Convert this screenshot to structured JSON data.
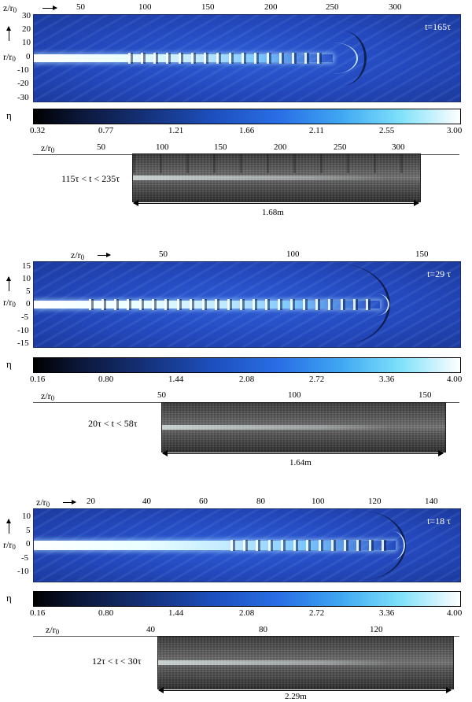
{
  "panels": [
    {
      "z_label": "z/r",
      "z_sub": "0",
      "r_label": "r/r",
      "r_sub": "0",
      "z_ticks": [
        "50",
        "100",
        "150",
        "200",
        "250",
        "300"
      ],
      "r_ticks": [
        "30",
        "20",
        "10",
        "0",
        "-10",
        "-20",
        "-30"
      ],
      "time": "t=165τ",
      "eta_label": "η",
      "cbar_ticks": [
        "0.32",
        "0.77",
        "1.21",
        "1.66",
        "2.11",
        "2.55",
        "3.00"
      ],
      "exp_z_ticks": [
        "50",
        "100",
        "150",
        "200",
        "250",
        "300"
      ],
      "exp_range": "115τ < t < 235τ",
      "scale": "1.68m"
    },
    {
      "z_label": "z/r",
      "z_sub": "0",
      "r_label": "r/r",
      "r_sub": "0",
      "z_ticks": [
        "50",
        "100",
        "150"
      ],
      "r_ticks": [
        "15",
        "10",
        "5",
        "0",
        "-5",
        "-10",
        "-15"
      ],
      "time": "t=29 τ",
      "eta_label": "η",
      "cbar_ticks": [
        "0.16",
        "0.80",
        "1.44",
        "2.08",
        "2.72",
        "3.36",
        "4.00"
      ],
      "exp_z_ticks": [
        "50",
        "100",
        "150"
      ],
      "exp_range": "20τ < t < 58τ",
      "scale": "1.64m"
    },
    {
      "z_label": "z/r",
      "z_sub": "0",
      "r_label": "r/r",
      "r_sub": "0",
      "z_ticks": [
        "20",
        "40",
        "60",
        "80",
        "100",
        "120",
        "140"
      ],
      "r_ticks": [
        "10",
        "5",
        "0",
        "-5",
        "-10"
      ],
      "time": "t=18 τ",
      "eta_label": "η",
      "cbar_ticks": [
        "0.16",
        "0.80",
        "1.44",
        "2.08",
        "2.72",
        "3.36",
        "4.00"
      ],
      "exp_z_ticks": [
        "40",
        "80",
        "120"
      ],
      "exp_range": "12τ < t < 30τ",
      "scale": "2.29m"
    }
  ]
}
